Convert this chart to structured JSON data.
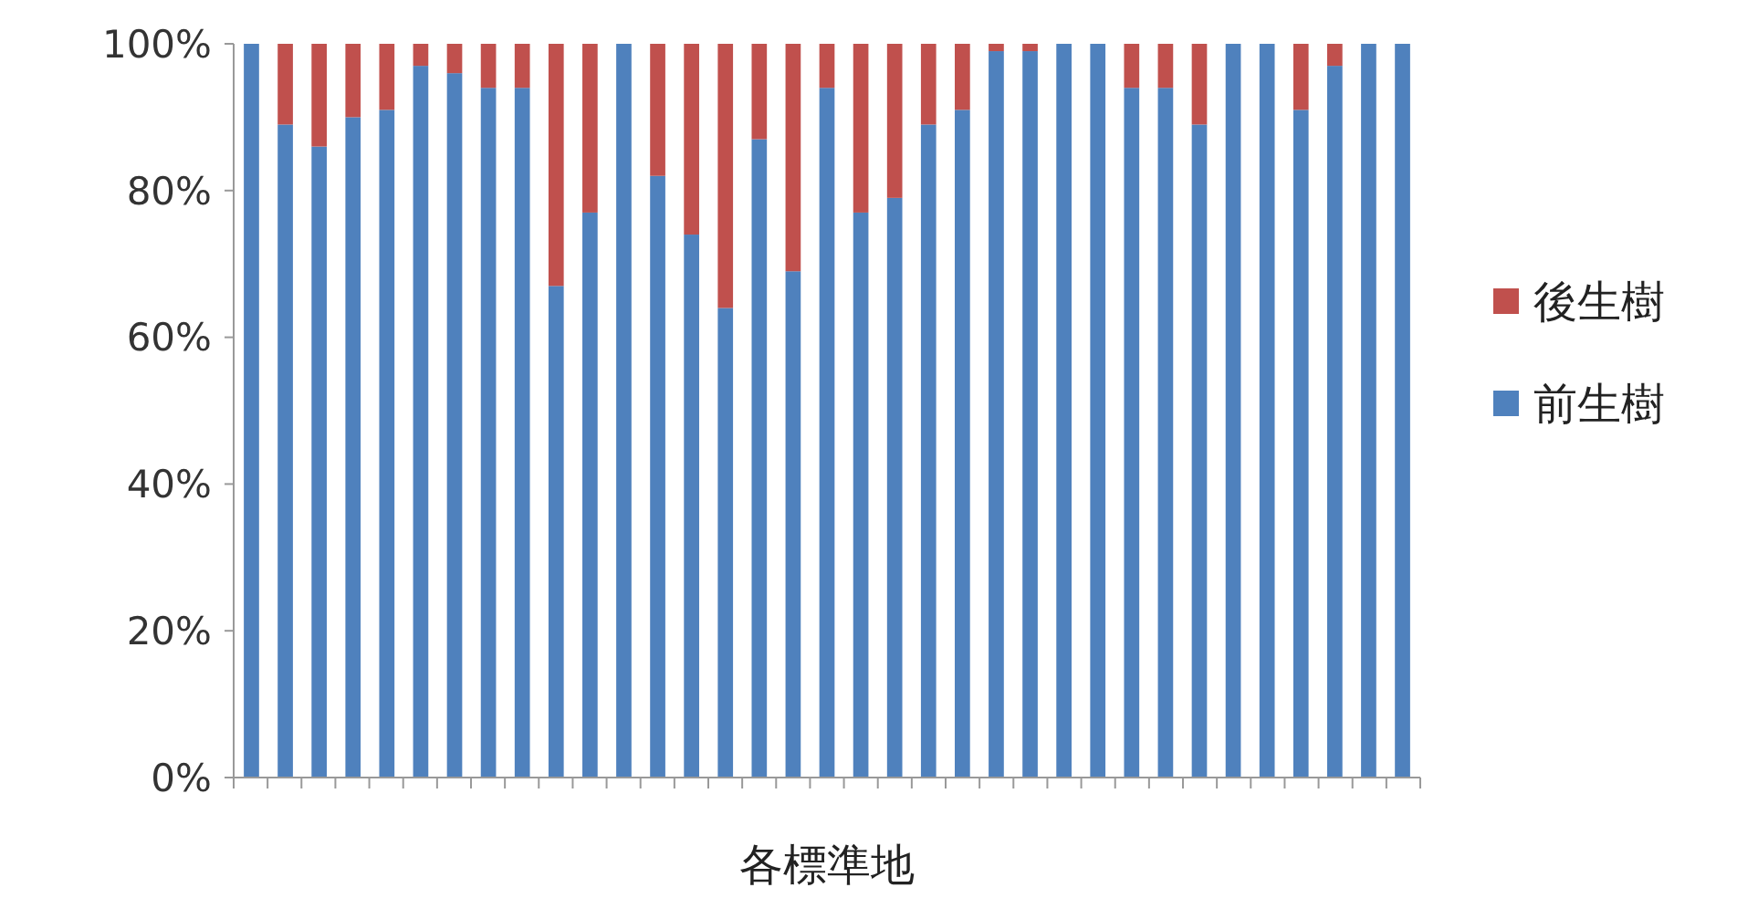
{
  "chart_data": {
    "type": "bar",
    "stacked": true,
    "xlabel": "各標準地",
    "categories": [
      null,
      null,
      null,
      null,
      null,
      null,
      null,
      null,
      null,
      null,
      null,
      null,
      null,
      null,
      null,
      null,
      null,
      null,
      null,
      null,
      null,
      null,
      null,
      null,
      null,
      null,
      null,
      null,
      null,
      null,
      null,
      null,
      null,
      null,
      null
    ],
    "series": [
      {
        "name": "前生樹",
        "color": "#4f81bd",
        "values": [
          100,
          89,
          86,
          90,
          91,
          97,
          96,
          94,
          94,
          67,
          77,
          100,
          82,
          74,
          64,
          87,
          69,
          94,
          77,
          79,
          89,
          91,
          99,
          99,
          100,
          100,
          94,
          94,
          89,
          100,
          100,
          91,
          97,
          100,
          100
        ]
      },
      {
        "name": "後生樹",
        "color": "#c0504d",
        "values": [
          0,
          11,
          14,
          10,
          9,
          3,
          4,
          6,
          6,
          33,
          23,
          0,
          18,
          26,
          36,
          13,
          31,
          6,
          23,
          21,
          11,
          9,
          1,
          1,
          0,
          0,
          6,
          6,
          11,
          0,
          0,
          9,
          3,
          0,
          0
        ]
      }
    ],
    "ylim": [
      0,
      100
    ],
    "yticks": [
      {
        "value": 0,
        "label": "0%"
      },
      {
        "value": 20,
        "label": "20%"
      },
      {
        "value": 40,
        "label": "40%"
      },
      {
        "value": 60,
        "label": "60%"
      },
      {
        "value": 80,
        "label": "80%"
      },
      {
        "value": 100,
        "label": "100%"
      }
    ],
    "legend": "right"
  }
}
